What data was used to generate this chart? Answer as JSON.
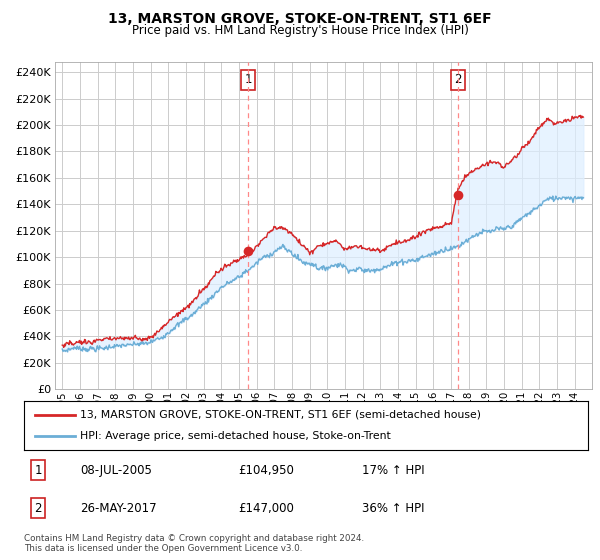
{
  "title": "13, MARSTON GROVE, STOKE-ON-TRENT, ST1 6EF",
  "subtitle": "Price paid vs. HM Land Registry's House Price Index (HPI)",
  "title_fontsize": 10,
  "subtitle_fontsize": 8.5,
  "yticks": [
    0,
    20000,
    40000,
    60000,
    80000,
    100000,
    120000,
    140000,
    160000,
    180000,
    200000,
    220000,
    240000
  ],
  "ylim": [
    0,
    248000
  ],
  "hpi_color": "#6baed6",
  "price_color": "#d62728",
  "vline_color": "#ff8888",
  "annotation_box_color": "#cc2222",
  "fill_color": "#ddeeff",
  "legend_label_price": "13, MARSTON GROVE, STOKE-ON-TRENT, ST1 6EF (semi-detached house)",
  "legend_label_hpi": "HPI: Average price, semi-detached house, Stoke-on-Trent",
  "sale1_date": "08-JUL-2005",
  "sale1_price": "£104,950",
  "sale1_hpi": "17% ↑ HPI",
  "sale1_year": 2005.52,
  "sale1_value": 104950,
  "sale2_date": "26-MAY-2017",
  "sale2_price": "£147,000",
  "sale2_hpi": "36% ↑ HPI",
  "sale2_year": 2017.4,
  "sale2_value": 147000,
  "copyright_text": "Contains HM Land Registry data © Crown copyright and database right 2024.\nThis data is licensed under the Open Government Licence v3.0.",
  "background_color": "#ffffff",
  "grid_color": "#cccccc"
}
